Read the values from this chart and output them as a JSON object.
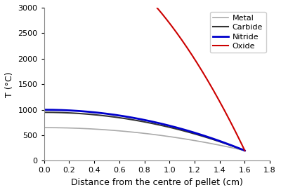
{
  "title": "",
  "xlabel": "Distance from the centre of pellet (cm)",
  "ylabel": "T (°C)",
  "xlim": [
    0.0,
    1.8
  ],
  "ylim": [
    0,
    3000
  ],
  "xticks": [
    0.0,
    0.2,
    0.4,
    0.6,
    0.8,
    1.0,
    1.2,
    1.4,
    1.6,
    1.8
  ],
  "yticks": [
    0,
    500,
    1000,
    1500,
    2000,
    2500,
    3000
  ],
  "R": 1.6,
  "T_surface": 200,
  "q_over_4k_metal": 175.78,
  "q_over_4k_carbide": 292.97,
  "q_over_4k_nitride": 312.5,
  "q_over_4k_oxide": 1600.0,
  "colors": {
    "Metal": "#aaaaaa",
    "Carbide": "#333333",
    "Nitride": "#0000cc",
    "Oxide": "#cc0000"
  },
  "legend_labels": [
    "Metal",
    "Carbide",
    "Nitride",
    "Oxide"
  ],
  "linewidths": {
    "Metal": 1.2,
    "Carbide": 1.5,
    "Nitride": 2.0,
    "Oxide": 1.5
  },
  "figsize": [
    4.0,
    2.74
  ],
  "dpi": 100
}
